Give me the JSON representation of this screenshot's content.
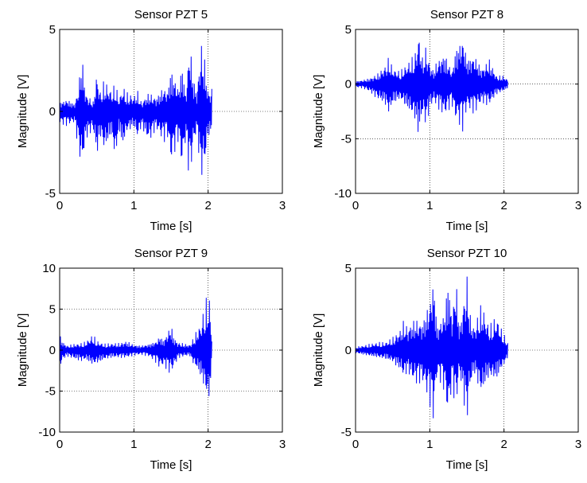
{
  "chart_data": [
    {
      "type": "line",
      "title": "Sensor PZT 5",
      "xlabel": "Time [s]",
      "ylabel": "Magnitude [V]",
      "xlim": [
        0,
        3
      ],
      "ylim": [
        -5,
        5
      ],
      "xticks": [
        "0",
        "1",
        "2",
        "3"
      ],
      "yticks": [
        "-5",
        "0",
        "5"
      ],
      "grid": true,
      "line_color": "#0000ff",
      "signal_end_s": 2.05,
      "envelope": {
        "t": [
          0,
          0.1,
          0.2,
          0.25,
          0.3,
          0.35,
          0.45,
          0.5,
          0.55,
          0.6,
          0.7,
          0.75,
          0.8,
          0.85,
          0.9,
          1.0,
          1.05,
          1.1,
          1.2,
          1.3,
          1.4,
          1.45,
          1.5,
          1.6,
          1.65,
          1.7,
          1.75,
          1.8,
          1.85,
          1.9,
          1.95,
          2.0,
          2.05
        ],
        "pos": [
          0.6,
          0.8,
          0.5,
          1.4,
          3.7,
          1.2,
          0.6,
          2.5,
          1.2,
          2.0,
          1.3,
          1.8,
          0.8,
          1.6,
          1.2,
          1.0,
          1.3,
          0.6,
          1.2,
          0.9,
          1.6,
          1.3,
          2.8,
          1.5,
          3.1,
          1.0,
          4.7,
          2.2,
          1.2,
          4.5,
          3.5,
          1.3,
          1.5
        ],
        "neg": [
          -0.8,
          -0.9,
          -0.7,
          -2.3,
          -3.8,
          -1.8,
          -1.2,
          -3.0,
          -1.6,
          -2.6,
          -1.5,
          -3.3,
          -1.2,
          -2.4,
          -1.4,
          -1.0,
          -1.8,
          -1.0,
          -2.0,
          -1.1,
          -2.0,
          -1.5,
          -3.3,
          -1.8,
          -3.7,
          -1.7,
          -4.6,
          -2.3,
          -1.2,
          -4.3,
          -3.8,
          -1.5,
          -1.8
        ]
      }
    },
    {
      "type": "line",
      "title": "Sensor PZT 8",
      "xlabel": "Time [s]",
      "ylabel": "Magnitude [V]",
      "xlim": [
        0,
        3
      ],
      "ylim": [
        -10,
        5
      ],
      "xticks": [
        "0",
        "1",
        "2",
        "3"
      ],
      "yticks": [
        "-10",
        "-5",
        "0",
        "5"
      ],
      "grid": true,
      "line_color": "#0000ff",
      "signal_end_s": 2.05,
      "envelope": {
        "t": [
          0,
          0.1,
          0.2,
          0.3,
          0.4,
          0.45,
          0.5,
          0.6,
          0.7,
          0.8,
          0.85,
          0.9,
          0.95,
          1.0,
          1.05,
          1.1,
          1.2,
          1.3,
          1.35,
          1.45,
          1.5,
          1.6,
          1.7,
          1.8,
          1.9,
          2.0,
          2.05
        ],
        "pos": [
          0.3,
          0.4,
          0.6,
          1.0,
          1.8,
          2.6,
          1.5,
          1.2,
          2.0,
          2.8,
          5.0,
          2.5,
          3.6,
          2.0,
          1.3,
          2.3,
          3.0,
          1.2,
          3.5,
          4.6,
          2.5,
          2.8,
          1.5,
          2.4,
          0.8,
          0.8,
          0.4
        ],
        "neg": [
          -0.3,
          -0.4,
          -0.8,
          -1.5,
          -2.0,
          -3.0,
          -2.0,
          -1.5,
          -2.5,
          -3.5,
          -5.2,
          -3.0,
          -4.1,
          -2.5,
          -1.7,
          -2.2,
          -3.1,
          -2.0,
          -3.5,
          -4.4,
          -2.3,
          -2.8,
          -1.8,
          -2.1,
          -1.0,
          -0.7,
          -0.4
        ]
      }
    },
    {
      "type": "line",
      "title": "Sensor PZT 9",
      "xlabel": "Time [s]",
      "ylabel": "Magnitude [V]",
      "xlim": [
        0,
        3
      ],
      "ylim": [
        -10,
        10
      ],
      "xticks": [
        "0",
        "1",
        "2",
        "3"
      ],
      "yticks": [
        "-10",
        "-5",
        "0",
        "5",
        "10"
      ],
      "grid": true,
      "line_color": "#0000ff",
      "signal_end_s": 2.05,
      "envelope": {
        "t": [
          0,
          0.05,
          0.1,
          0.2,
          0.3,
          0.35,
          0.45,
          0.5,
          0.6,
          0.7,
          0.8,
          0.9,
          1.0,
          1.1,
          1.2,
          1.3,
          1.35,
          1.4,
          1.5,
          1.55,
          1.6,
          1.7,
          1.75,
          1.8,
          1.85,
          1.9,
          1.95,
          2.0,
          2.02,
          2.05
        ],
        "pos": [
          2.0,
          1.0,
          0.6,
          0.8,
          0.9,
          1.1,
          2.0,
          1.2,
          0.8,
          0.9,
          0.9,
          1.2,
          0.7,
          0.6,
          0.8,
          1.2,
          1.9,
          1.3,
          3.3,
          1.5,
          1.0,
          0.8,
          0.7,
          1.5,
          2.6,
          3.4,
          5.5,
          7.3,
          6.5,
          2.0
        ],
        "neg": [
          -2.3,
          -1.2,
          -0.8,
          -1.2,
          -1.5,
          -1.3,
          -2.0,
          -1.8,
          -1.3,
          -1.0,
          -1.0,
          -1.0,
          -0.7,
          -0.6,
          -0.8,
          -1.6,
          -2.3,
          -2.0,
          -3.1,
          -2.0,
          -1.0,
          -0.8,
          -0.7,
          -1.8,
          -2.6,
          -3.5,
          -5.0,
          -7.0,
          -6.5,
          -2.0
        ]
      }
    },
    {
      "type": "line",
      "title": "Sensor PZT 10",
      "xlabel": "Time [s]",
      "ylabel": "Magnitude [V]",
      "xlim": [
        0,
        3
      ],
      "ylim": [
        -5,
        5
      ],
      "xticks": [
        "0",
        "1",
        "2",
        "3"
      ],
      "yticks": [
        "-5",
        "0",
        "5"
      ],
      "grid": true,
      "line_color": "#0000ff",
      "signal_end_s": 2.05,
      "envelope": {
        "t": [
          0,
          0.1,
          0.2,
          0.3,
          0.4,
          0.5,
          0.6,
          0.65,
          0.7,
          0.8,
          0.9,
          1.0,
          1.05,
          1.1,
          1.2,
          1.25,
          1.3,
          1.35,
          1.4,
          1.45,
          1.5,
          1.55,
          1.6,
          1.7,
          1.75,
          1.8,
          1.9,
          1.95,
          2.0,
          2.05
        ],
        "pos": [
          0.2,
          0.3,
          0.4,
          0.5,
          0.5,
          0.8,
          1.3,
          1.9,
          1.5,
          2.0,
          1.8,
          3.2,
          4.8,
          1.5,
          2.5,
          4.8,
          2.0,
          4.9,
          1.5,
          3.0,
          4.9,
          2.0,
          1.5,
          3.0,
          2.2,
          1.5,
          2.2,
          1.5,
          1.0,
          0.5
        ],
        "neg": [
          -0.2,
          -0.3,
          -0.4,
          -0.5,
          -0.6,
          -0.8,
          -1.3,
          -1.8,
          -1.4,
          -2.2,
          -2.0,
          -3.4,
          -4.5,
          -1.6,
          -2.6,
          -4.6,
          -2.0,
          -3.9,
          -1.5,
          -3.0,
          -4.7,
          -2.3,
          -1.5,
          -3.0,
          -2.2,
          -1.8,
          -2.0,
          -1.4,
          -1.0,
          -0.5
        ]
      }
    }
  ]
}
